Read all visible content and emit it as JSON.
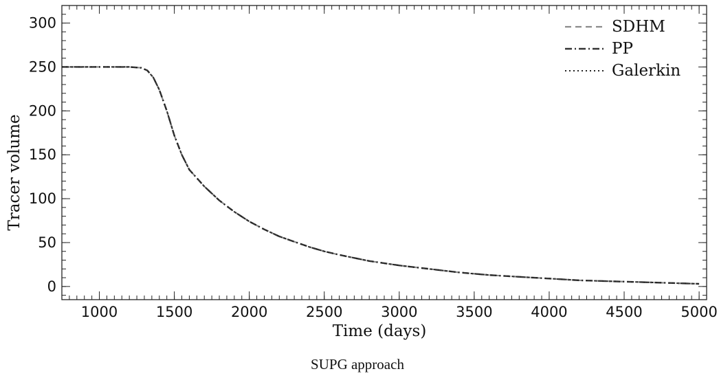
{
  "chart_data": {
    "type": "line",
    "xlabel": "Time (days)",
    "ylabel": "Tracer volume",
    "xlim": [
      750,
      5050
    ],
    "ylim": [
      -15,
      320
    ],
    "xticks": [
      1000,
      1500,
      2000,
      2500,
      3000,
      3500,
      4000,
      4500,
      5000
    ],
    "yticks": [
      0,
      50,
      100,
      150,
      200,
      250,
      300
    ],
    "x_minor_step": 50,
    "y_minor_step": 10,
    "legend_position": "top-right",
    "series": [
      {
        "name": "SDHM",
        "style": "dashed",
        "color": "#8a8a8a",
        "x": [
          750,
          1000,
          1200,
          1280,
          1320,
          1360,
          1400,
          1450,
          1500,
          1550,
          1600,
          1700,
          1800,
          1900,
          2000,
          2100,
          2200,
          2300,
          2400,
          2500,
          2600,
          2800,
          3000,
          3200,
          3400,
          3600,
          3800,
          4000,
          4200,
          4400,
          4600,
          4800,
          5000
        ],
        "y": [
          250,
          250,
          250,
          249,
          246,
          238,
          224,
          200,
          172,
          150,
          133,
          114,
          98,
          85,
          74,
          65,
          57,
          51,
          45,
          40,
          36,
          29,
          24,
          20,
          16,
          13,
          11,
          9,
          7,
          6,
          5,
          4,
          3
        ]
      },
      {
        "name": "PP",
        "style": "dashdot",
        "color": "#333333",
        "x": [
          750,
          1000,
          1200,
          1280,
          1320,
          1360,
          1400,
          1450,
          1500,
          1550,
          1600,
          1700,
          1800,
          1900,
          2000,
          2100,
          2200,
          2300,
          2400,
          2500,
          2600,
          2800,
          3000,
          3200,
          3400,
          3600,
          3800,
          4000,
          4200,
          4400,
          4600,
          4800,
          5000
        ],
        "y": [
          250,
          250,
          250,
          249,
          246,
          238,
          224,
          200,
          172,
          150,
          133,
          114,
          98,
          85,
          74,
          65,
          57,
          51,
          45,
          40,
          36,
          29,
          24,
          20,
          16,
          13,
          11,
          9,
          7,
          6,
          5,
          4,
          3
        ]
      },
      {
        "name": "Galerkin",
        "style": "dotted",
        "color": "#222222",
        "x": [
          750,
          1000,
          1200,
          1280,
          1320,
          1360,
          1400,
          1450,
          1500,
          1550,
          1600,
          1700,
          1800,
          1900,
          2000,
          2100,
          2200,
          2300,
          2400,
          2500,
          2600,
          2800,
          3000,
          3200,
          3400,
          3600,
          3800,
          4000,
          4200,
          4400,
          4600,
          4800,
          5000
        ],
        "y": [
          250,
          250,
          250,
          249,
          246,
          238,
          224,
          200,
          172,
          150,
          133,
          114,
          98,
          85,
          74,
          65,
          57,
          51,
          45,
          40,
          36,
          29,
          24,
          20,
          16,
          13,
          11,
          9,
          7,
          6,
          5,
          4,
          3
        ]
      }
    ]
  },
  "caption": "SUPG approach"
}
